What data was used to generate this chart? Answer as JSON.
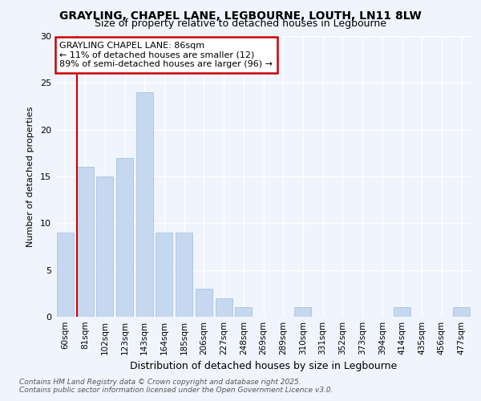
{
  "title_line1": "GRAYLING, CHAPEL LANE, LEGBOURNE, LOUTH, LN11 8LW",
  "title_line2": "Size of property relative to detached houses in Legbourne",
  "xlabel": "Distribution of detached houses by size in Legbourne",
  "ylabel": "Number of detached properties",
  "categories": [
    "60sqm",
    "81sqm",
    "102sqm",
    "123sqm",
    "143sqm",
    "164sqm",
    "185sqm",
    "206sqm",
    "227sqm",
    "248sqm",
    "269sqm",
    "289sqm",
    "310sqm",
    "331sqm",
    "352sqm",
    "373sqm",
    "394sqm",
    "414sqm",
    "435sqm",
    "456sqm",
    "477sqm"
  ],
  "values": [
    9,
    16,
    15,
    17,
    24,
    9,
    9,
    3,
    2,
    1,
    0,
    0,
    1,
    0,
    0,
    0,
    0,
    1,
    0,
    0,
    1
  ],
  "bar_color": "#c5d8f0",
  "bar_edge_color": "#a8c4e0",
  "annotation_title": "GRAYLING CHAPEL LANE: 86sqm",
  "annotation_line1": "← 11% of detached houses are smaller (12)",
  "annotation_line2": "89% of semi-detached houses are larger (96) →",
  "annotation_box_color": "#ffffff",
  "annotation_border_color": "#cc0000",
  "vline_color": "#cc0000",
  "vline_x_index": 1,
  "ylim": [
    0,
    30
  ],
  "yticks": [
    0,
    5,
    10,
    15,
    20,
    25,
    30
  ],
  "fig_bg_color": "#f0f4fc",
  "plot_bg_color": "#f0f4fc",
  "grid_color": "#ffffff",
  "footer_line1": "Contains HM Land Registry data © Crown copyright and database right 2025.",
  "footer_line2": "Contains public sector information licensed under the Open Government Licence v3.0."
}
